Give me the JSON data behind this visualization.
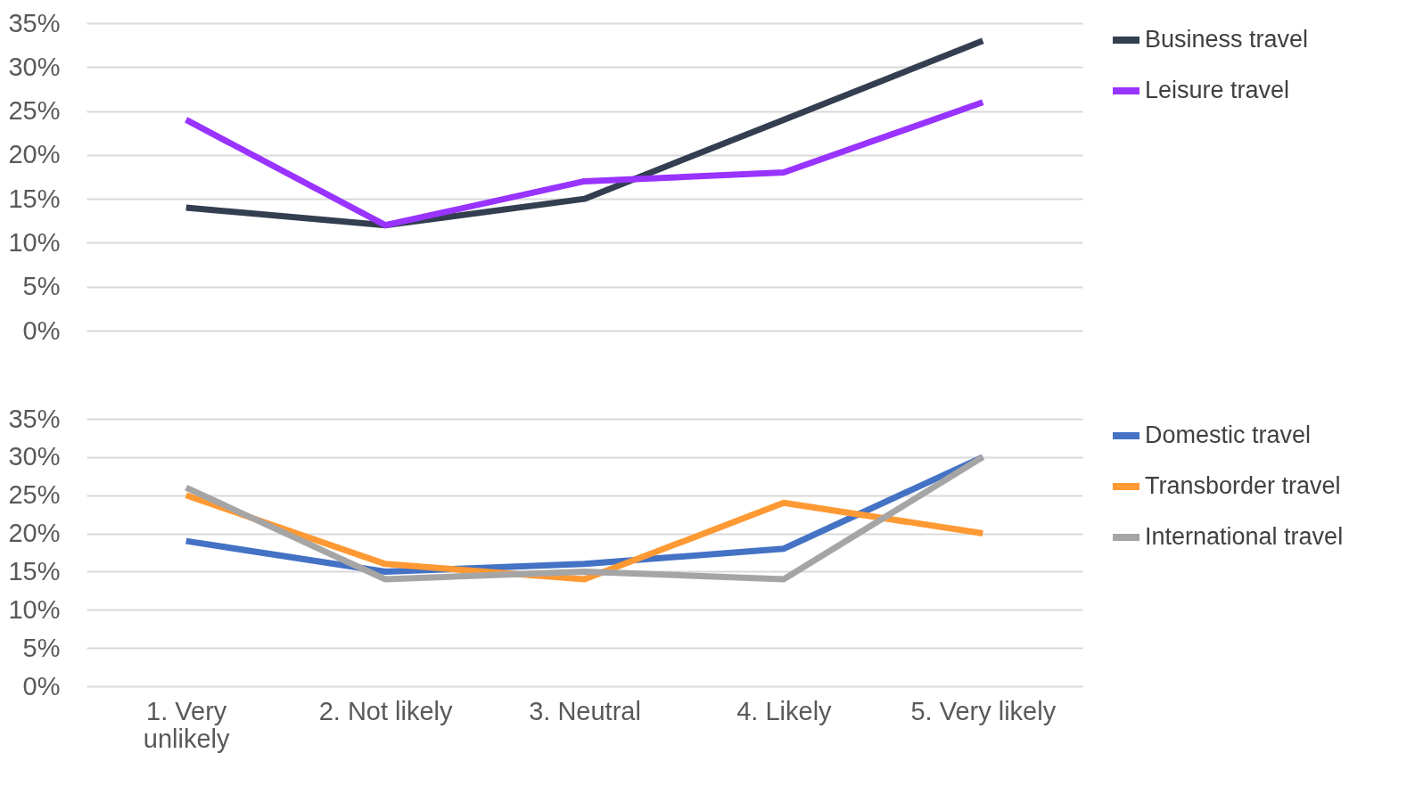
{
  "chart_data": [
    {
      "type": "line",
      "categories": [
        null,
        null,
        null,
        null,
        null
      ],
      "ylim": [
        0,
        35
      ],
      "yticks": [
        {
          "value": 0,
          "label": "0%"
        },
        {
          "value": 5,
          "label": "5%"
        },
        {
          "value": 10,
          "label": "10%"
        },
        {
          "value": 15,
          "label": "15%"
        },
        {
          "value": 20,
          "label": "20%"
        },
        {
          "value": 25,
          "label": "25%"
        },
        {
          "value": 30,
          "label": "30%"
        },
        {
          "value": 35,
          "label": "35%"
        }
      ],
      "grid": "y",
      "legend": "right",
      "tick_labels": "y",
      "line_style": "solid",
      "marker": "none",
      "series": [
        {
          "name": "Business travel",
          "color": "#333f50",
          "values": [
            14,
            12,
            15,
            24,
            33
          ]
        },
        {
          "name": "Leisure travel",
          "color": "#9933ff",
          "values": [
            24,
            12,
            17,
            18,
            26
          ]
        }
      ]
    },
    {
      "type": "line",
      "categories": [
        "1. Very unlikely",
        "2. Not likely",
        "3. Neutral",
        "4. Likely",
        "5. Very likely"
      ],
      "ylim": [
        0,
        35
      ],
      "yticks": [
        {
          "value": 0,
          "label": "0%"
        },
        {
          "value": 5,
          "label": "5%"
        },
        {
          "value": 10,
          "label": "10%"
        },
        {
          "value": 15,
          "label": "15%"
        },
        {
          "value": 20,
          "label": "20%"
        },
        {
          "value": 25,
          "label": "25%"
        },
        {
          "value": 30,
          "label": "30%"
        },
        {
          "value": 35,
          "label": "35%"
        }
      ],
      "grid": "y",
      "legend": "right",
      "line_style": "solid",
      "marker": "none",
      "series": [
        {
          "name": "Domestic travel",
          "color": "#4472c4",
          "values": [
            19,
            15,
            16,
            18,
            30
          ]
        },
        {
          "name": "Transborder travel",
          "color": "#ff9933",
          "values": [
            25,
            16,
            14,
            24,
            20
          ]
        },
        {
          "name": "International travel",
          "color": "#a5a5a5",
          "values": [
            26,
            14,
            15,
            14,
            30
          ]
        }
      ]
    }
  ]
}
